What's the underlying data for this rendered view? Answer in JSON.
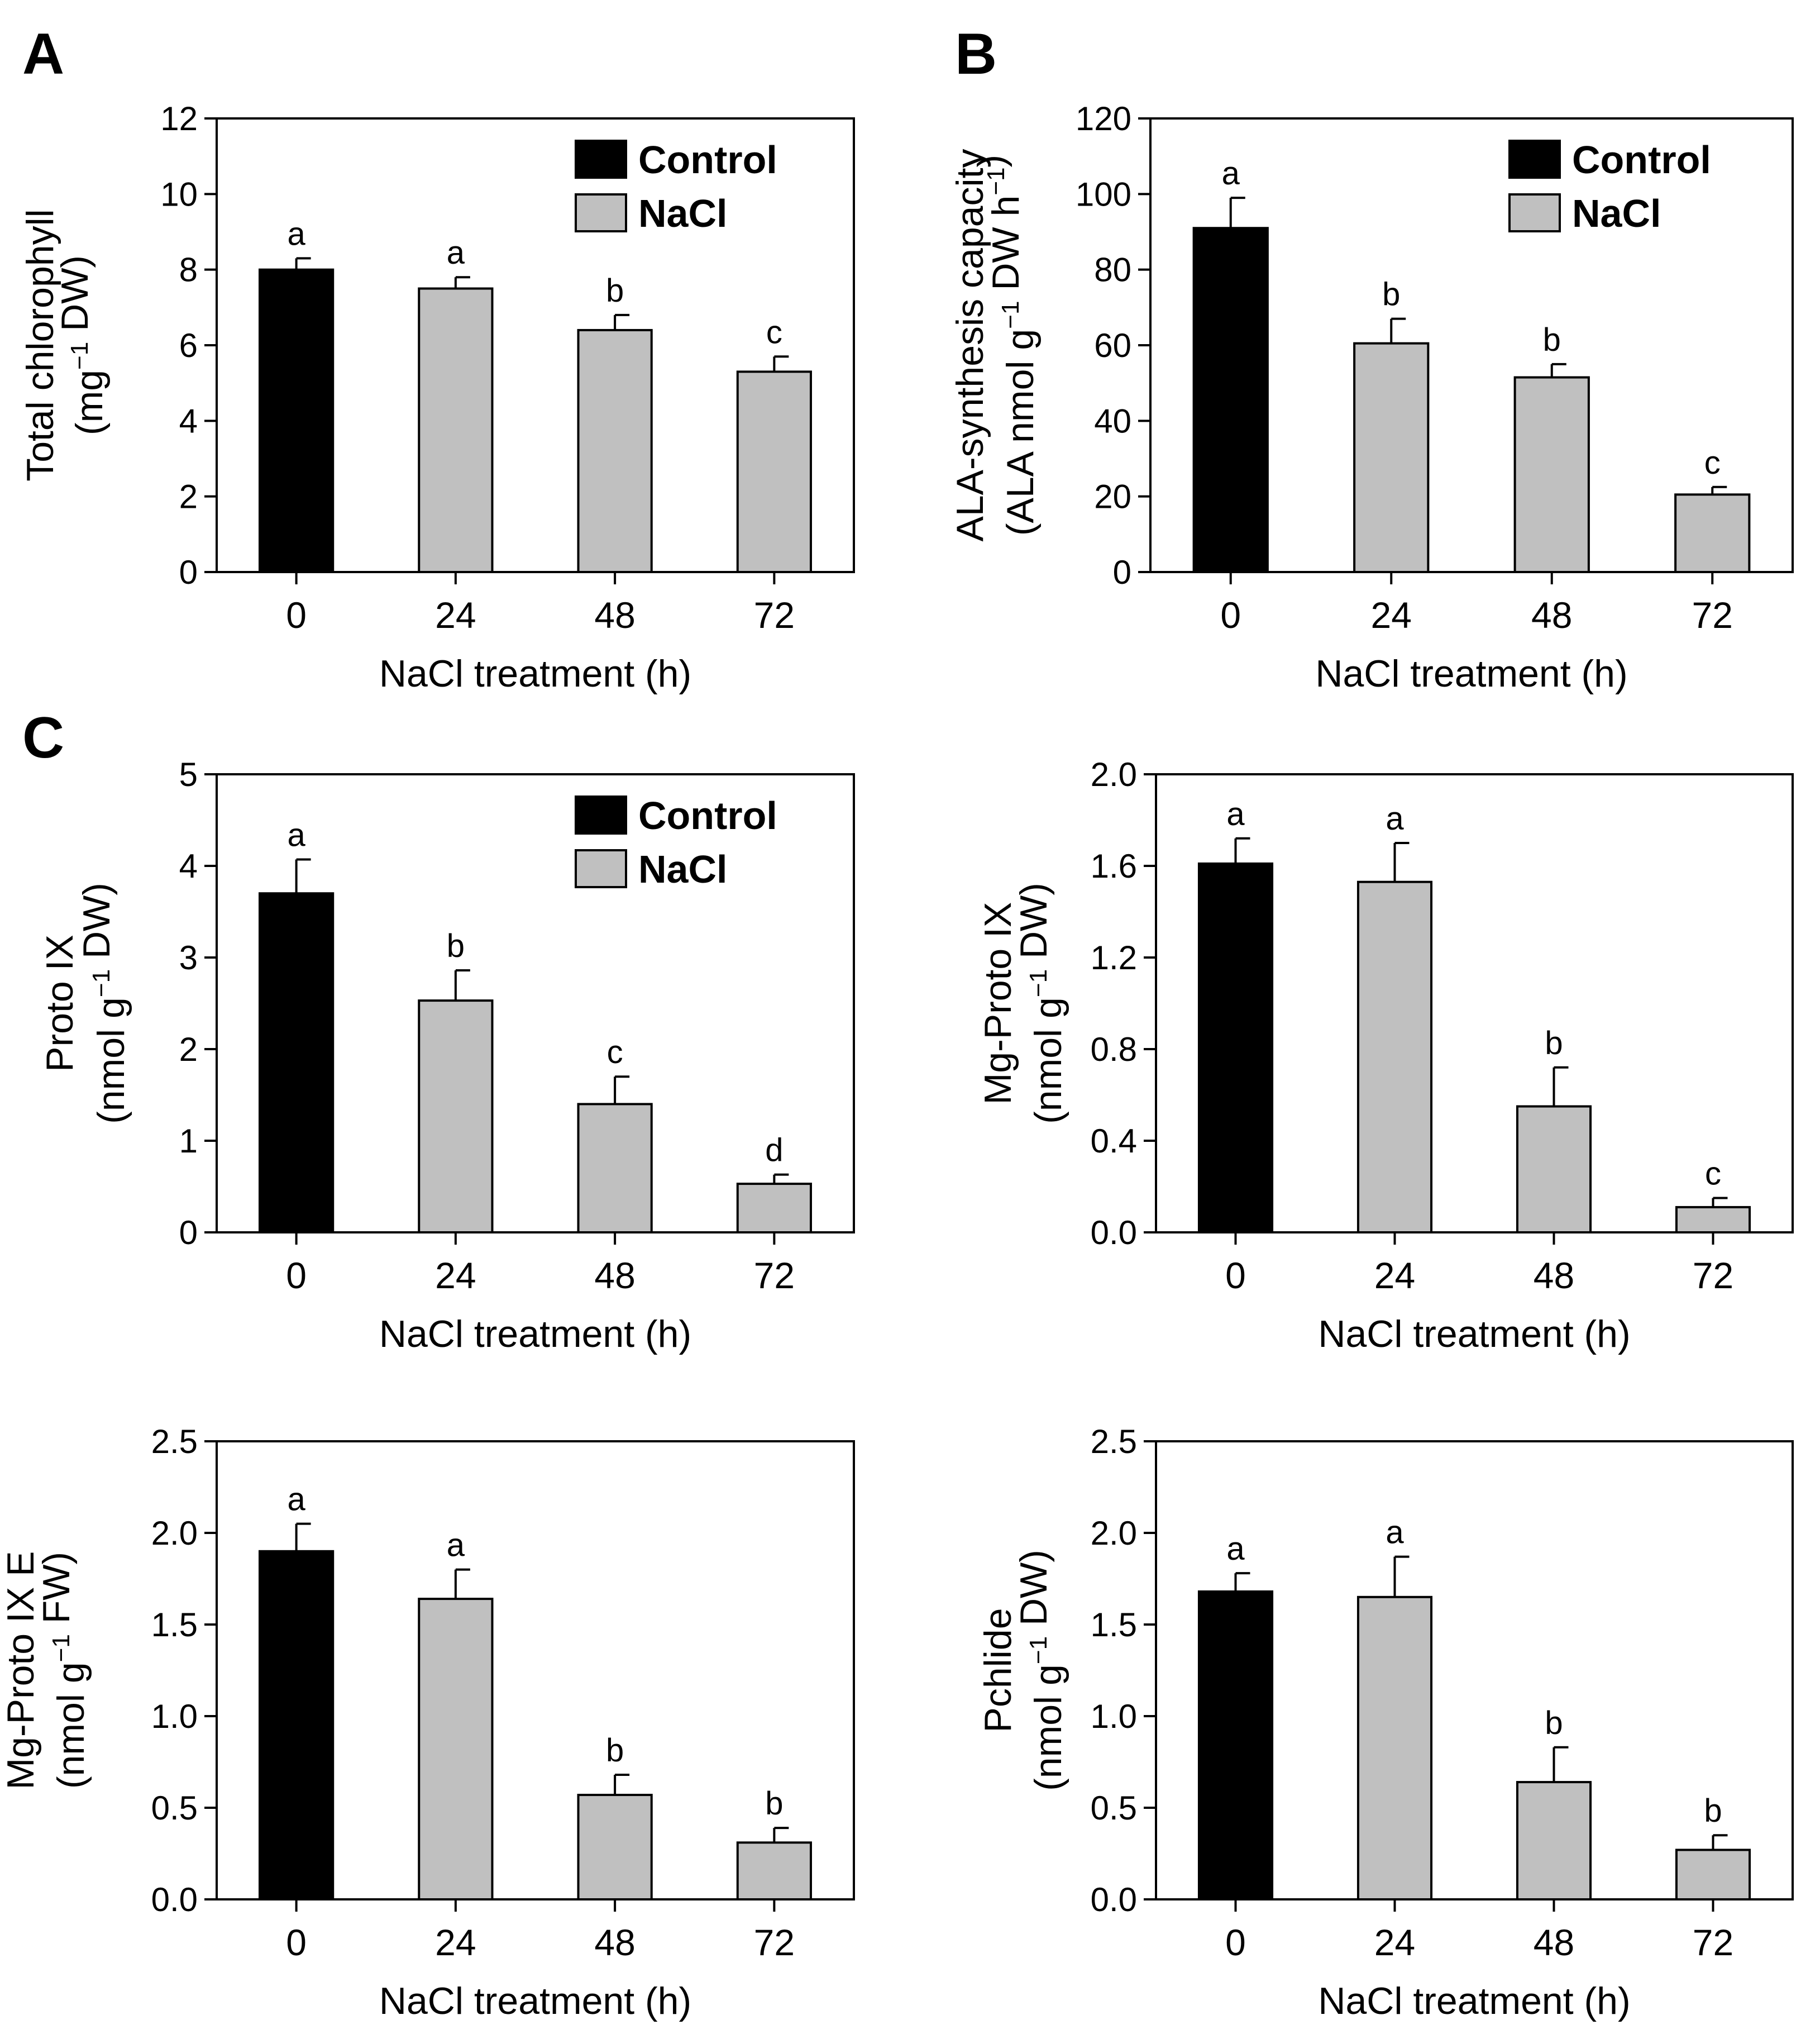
{
  "figure": {
    "panel_letters": [
      "A",
      "B",
      "C"
    ]
  },
  "colors": {
    "control": "#000000",
    "nacl": "#c0c0c0",
    "axis": "#000000"
  },
  "chart_data": [
    {
      "type": "bar",
      "panel": "A",
      "categories": [
        "0",
        "24",
        "48",
        "72"
      ],
      "values": [
        8.0,
        7.5,
        6.4,
        5.3
      ],
      "errors": [
        0.3,
        0.3,
        0.4,
        0.4
      ],
      "significance": [
        "a",
        "a",
        "b",
        "c"
      ],
      "series_of_bar": [
        "Control",
        "NaCl",
        "NaCl",
        "NaCl"
      ],
      "legend": [
        "Control",
        "NaCl"
      ],
      "ylim": [
        0,
        12
      ],
      "yticks": [
        "0",
        "2",
        "4",
        "6",
        "8",
        "10",
        "12"
      ],
      "ylabel_line1": "Total chlorophyll",
      "ylabel_line2_pre": "(mg",
      "ylabel_sup": "−1",
      "ylabel_line2_post": " DW)",
      "xlabel": "NaCl treatment (h)"
    },
    {
      "type": "bar",
      "panel": "B",
      "categories": [
        "0",
        "24",
        "48",
        "72"
      ],
      "values": [
        91,
        60.5,
        51.5,
        20.5
      ],
      "errors": [
        8,
        6.5,
        3.5,
        2
      ],
      "significance": [
        "a",
        "b",
        "b",
        "c"
      ],
      "series_of_bar": [
        "Control",
        "NaCl",
        "NaCl",
        "NaCl"
      ],
      "legend": [
        "Control",
        "NaCl"
      ],
      "ylim": [
        0,
        120
      ],
      "yticks": [
        "0",
        "20",
        "40",
        "60",
        "80",
        "100",
        "120"
      ],
      "ylabel_line1": "ALA-synthesis capacity",
      "ylabel_line2_pre": "(ALA nmol g",
      "ylabel_sup": "−1",
      "ylabel_line2_mid": " DW h",
      "ylabel_sup2": "−1",
      "ylabel_line2_post": ")",
      "xlabel": "NaCl treatment (h)"
    },
    {
      "type": "bar",
      "panel": "C",
      "categories": [
        "0",
        "24",
        "48",
        "72"
      ],
      "values": [
        3.7,
        2.53,
        1.4,
        0.53
      ],
      "errors": [
        0.37,
        0.33,
        0.3,
        0.1
      ],
      "significance": [
        "a",
        "b",
        "c",
        "d"
      ],
      "series_of_bar": [
        "Control",
        "NaCl",
        "NaCl",
        "NaCl"
      ],
      "legend": [
        "Control",
        "NaCl"
      ],
      "ylim": [
        0,
        5
      ],
      "yticks": [
        "0",
        "1",
        "2",
        "3",
        "4",
        "5"
      ],
      "ylabel_line1": "Proto IX",
      "ylabel_line2_pre": "(nmol g",
      "ylabel_sup": "−1",
      "ylabel_line2_post": " DW)",
      "xlabel": "NaCl treatment (h)"
    },
    {
      "type": "bar",
      "panel": "",
      "categories": [
        "0",
        "24",
        "48",
        "72"
      ],
      "values": [
        1.61,
        1.53,
        0.55,
        0.11
      ],
      "errors": [
        0.11,
        0.17,
        0.17,
        0.04
      ],
      "significance": [
        "a",
        "a",
        "b",
        "c"
      ],
      "series_of_bar": [
        "Control",
        "NaCl",
        "NaCl",
        "NaCl"
      ],
      "ylim": [
        0,
        2.0
      ],
      "yticks": [
        "0.0",
        "0.4",
        "0.8",
        "1.2",
        "1.6",
        "2.0"
      ],
      "ylabel_line1": "Mg-Proto IX",
      "ylabel_line2_pre": "(nmol g",
      "ylabel_sup": "−1",
      "ylabel_line2_post": " DW)",
      "xlabel": "NaCl treatment (h)"
    },
    {
      "type": "bar",
      "panel": "",
      "categories": [
        "0",
        "24",
        "48",
        "72"
      ],
      "values": [
        1.9,
        1.64,
        0.57,
        0.31
      ],
      "errors": [
        0.15,
        0.16,
        0.11,
        0.08
      ],
      "significance": [
        "a",
        "a",
        "b",
        "b"
      ],
      "series_of_bar": [
        "Control",
        "NaCl",
        "NaCl",
        "NaCl"
      ],
      "ylim": [
        0,
        2.5
      ],
      "yticks": [
        "0.0",
        "0.5",
        "1.0",
        "1.5",
        "2.0",
        "2.5"
      ],
      "ylabel_line1": "Mg-Proto IX E",
      "ylabel_line2_pre": "(nmol g",
      "ylabel_sup": "−1",
      "ylabel_line2_post": " FW)",
      "xlabel": "NaCl treatment (h)"
    },
    {
      "type": "bar",
      "panel": "",
      "categories": [
        "0",
        "24",
        "48",
        "72"
      ],
      "values": [
        1.68,
        1.65,
        0.64,
        0.27
      ],
      "errors": [
        0.1,
        0.22,
        0.19,
        0.08
      ],
      "significance": [
        "a",
        "a",
        "b",
        "b"
      ],
      "series_of_bar": [
        "Control",
        "NaCl",
        "NaCl",
        "NaCl"
      ],
      "ylim": [
        0,
        2.5
      ],
      "yticks": [
        "0.0",
        "0.5",
        "1.0",
        "1.5",
        "2.0",
        "2.5"
      ],
      "ylabel_line1": "Pchlide",
      "ylabel_line2_pre": "(nmol g",
      "ylabel_sup": "−1",
      "ylabel_line2_post": " DW)",
      "xlabel": "NaCl treatment (h)"
    }
  ]
}
